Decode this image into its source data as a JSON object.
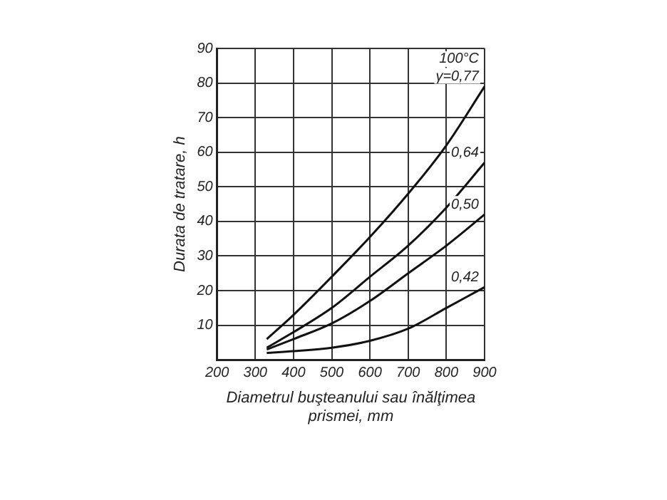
{
  "chart_data": {
    "type": "line",
    "xlabel": "Diametrul buşteanului sau înălţimea prismei, mm",
    "ylabel": "Durata de tratare, h",
    "annotations": [
      "100°C"
    ],
    "x": [
      330,
      400,
      500,
      600,
      700,
      800,
      900
    ],
    "series": [
      {
        "name": "γ=0,77",
        "color": "#111111",
        "values": [
          6,
          13,
          24,
          35.5,
          48,
          62,
          79
        ]
      },
      {
        "name": "0,64",
        "color": "#111111",
        "values": [
          3.5,
          8,
          15,
          24,
          33,
          44,
          57
        ]
      },
      {
        "name": "0,50",
        "color": "#111111",
        "values": [
          3,
          6,
          10.5,
          17,
          25,
          33,
          42
        ]
      },
      {
        "name": "0,42",
        "color": "#111111",
        "values": [
          2,
          2.5,
          3.5,
          5.5,
          9,
          15,
          21
        ]
      }
    ],
    "xlim": [
      200,
      900
    ],
    "xticks": [
      200,
      300,
      400,
      500,
      600,
      700,
      800,
      900
    ],
    "ylim": [
      0,
      90
    ],
    "yticks": [
      10,
      20,
      30,
      40,
      50,
      60,
      70,
      80,
      90
    ],
    "grid": true,
    "legend": false,
    "marker": "none",
    "line_style": "solid"
  }
}
